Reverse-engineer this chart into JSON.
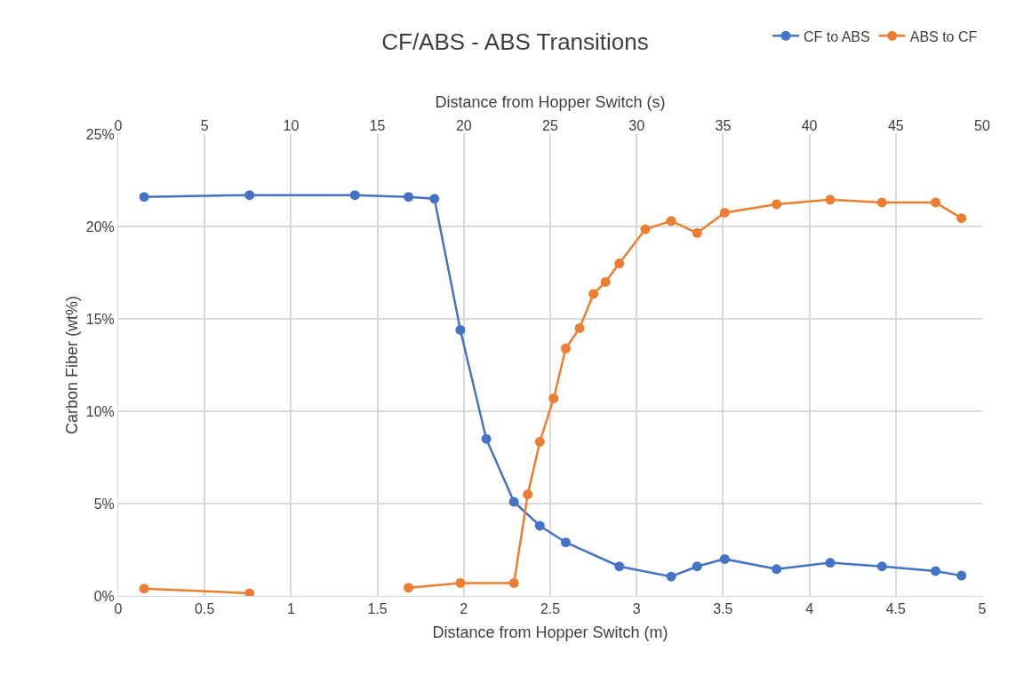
{
  "chart_data": {
    "type": "line",
    "title": "CF/ABS - ABS Transitions",
    "xlabel": "Distance from Hopper Switch (m)",
    "x2label": "Distance from Hopper Switch (s)",
    "ylabel": "Carbon Fiber (wt%)",
    "xlim": [
      0,
      5
    ],
    "xticks": [
      0,
      0.5,
      1,
      1.5,
      2,
      2.5,
      3,
      3.5,
      4,
      4.5,
      5
    ],
    "x2lim": [
      0,
      50
    ],
    "x2ticks": [
      0,
      5,
      10,
      15,
      20,
      25,
      30,
      35,
      40,
      45,
      50
    ],
    "ylim": [
      0,
      25
    ],
    "yticks": [
      {
        "value": 0,
        "label": "0%"
      },
      {
        "value": 5,
        "label": "5%"
      },
      {
        "value": 10,
        "label": "10%"
      },
      {
        "value": 15,
        "label": "15%"
      },
      {
        "value": 20,
        "label": "20%"
      },
      {
        "value": 25,
        "label": "25%"
      }
    ],
    "grid": true,
    "legend": "top right",
    "marker": "circle",
    "line_style": "solid",
    "series": [
      {
        "name": "CF to ABS",
        "color": "#4472c4",
        "x": [
          0.15,
          0.76,
          1.37,
          1.68,
          1.83,
          1.98,
          2.13,
          2.29,
          2.44,
          2.59,
          2.9,
          3.2,
          3.35,
          3.51,
          3.81,
          4.12,
          4.42,
          4.73,
          4.88
        ],
        "values": [
          21.6,
          21.7,
          21.7,
          21.6,
          21.5,
          14.4,
          8.5,
          5.1,
          3.8,
          2.9,
          1.6,
          1.05,
          1.6,
          2.0,
          1.45,
          1.8,
          1.6,
          1.35,
          1.1
        ]
      },
      {
        "name": "ABS to CF",
        "color": "#ed7d31",
        "x": [
          0.15,
          0.76,
          1.2,
          1.68,
          1.98,
          2.29,
          2.37,
          2.44,
          2.52,
          2.59,
          2.67,
          2.75,
          2.82,
          2.9,
          3.05,
          3.2,
          3.35,
          3.51,
          3.81,
          4.12,
          4.42,
          4.73,
          4.88
        ],
        "values": [
          0.4,
          0.15,
          null,
          0.45,
          0.7,
          0.7,
          5.5,
          8.35,
          10.7,
          13.4,
          14.5,
          16.35,
          17.0,
          18.0,
          19.85,
          20.3,
          19.65,
          20.75,
          21.2,
          21.45,
          21.3,
          21.3,
          20.45
        ]
      }
    ]
  }
}
